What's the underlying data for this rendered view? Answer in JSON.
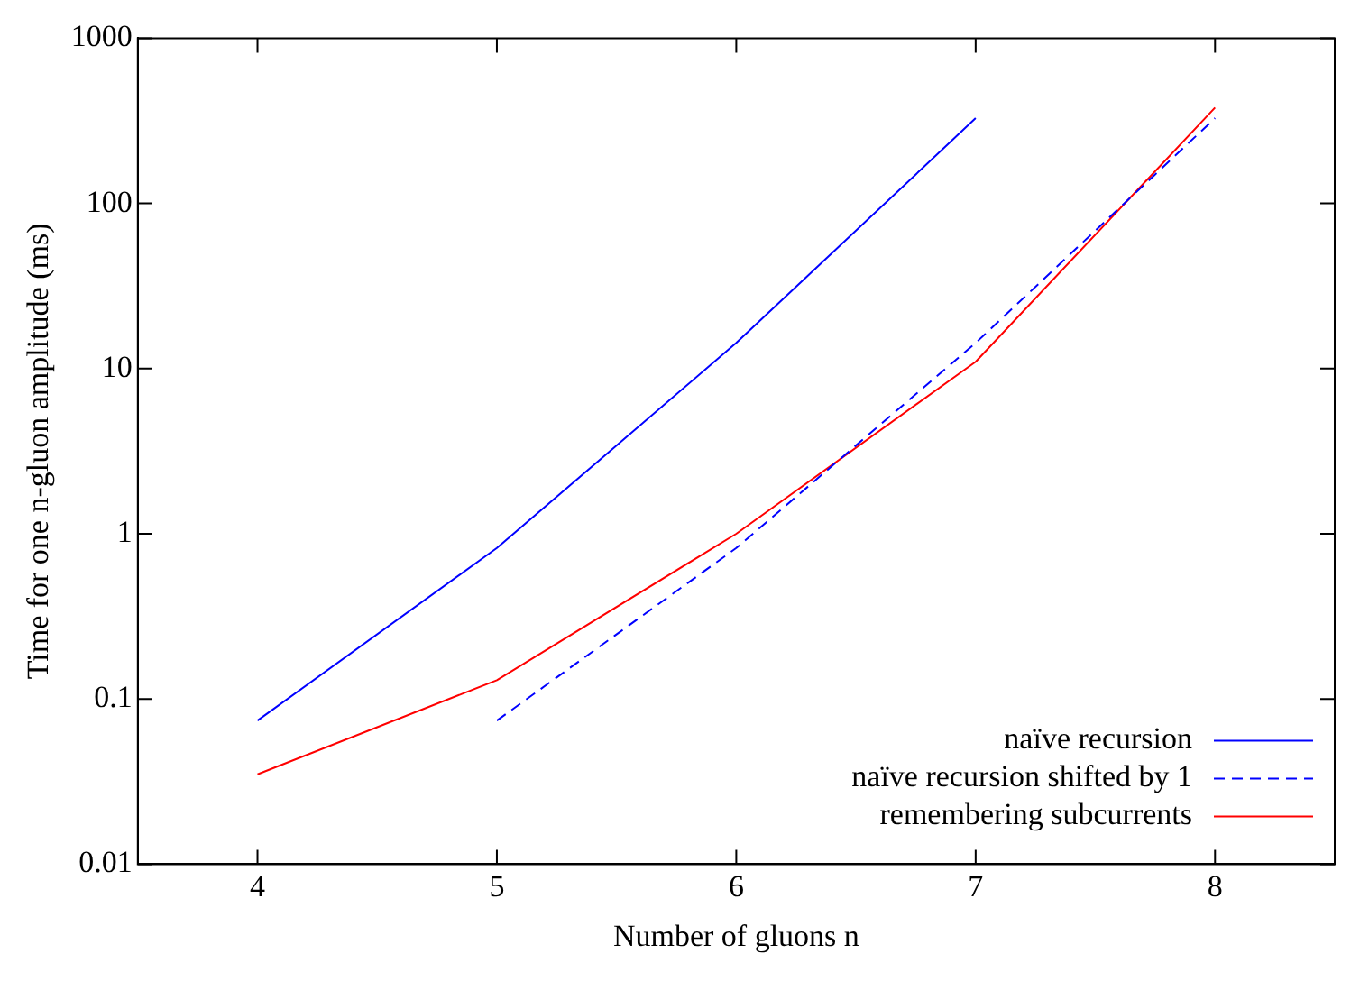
{
  "chart_data": {
    "type": "line",
    "xlabel": "Number of gluons n",
    "ylabel": "Time for one n-gluon amplitude (ms)",
    "log": "y",
    "xlim": [
      3.5,
      8.5
    ],
    "xticks": [
      4,
      5,
      6,
      7,
      8
    ],
    "ylim": [
      0.01,
      1000
    ],
    "yticks": [
      0.01,
      0.1,
      1,
      10,
      100,
      1000
    ],
    "grid": false,
    "legend": "bottom right",
    "marker": "none",
    "series": [
      {
        "name": "naïve recursion",
        "color": "#0000ff",
        "line_style": "solid",
        "x": [
          4,
          5,
          6,
          7
        ],
        "values": [
          0.074,
          0.82,
          14.3,
          328
        ]
      },
      {
        "name": "naïve recursion shifted by 1",
        "color": "#0000ff",
        "line_style": "dashed",
        "x": [
          5,
          6,
          7,
          8
        ],
        "values": [
          0.074,
          0.82,
          14.3,
          328
        ]
      },
      {
        "name": "remembering subcurrents",
        "color": "#ff0000",
        "line_style": "solid",
        "x": [
          4,
          5,
          6,
          7,
          8
        ],
        "values": [
          0.035,
          0.13,
          1.0,
          11,
          380
        ]
      }
    ]
  }
}
